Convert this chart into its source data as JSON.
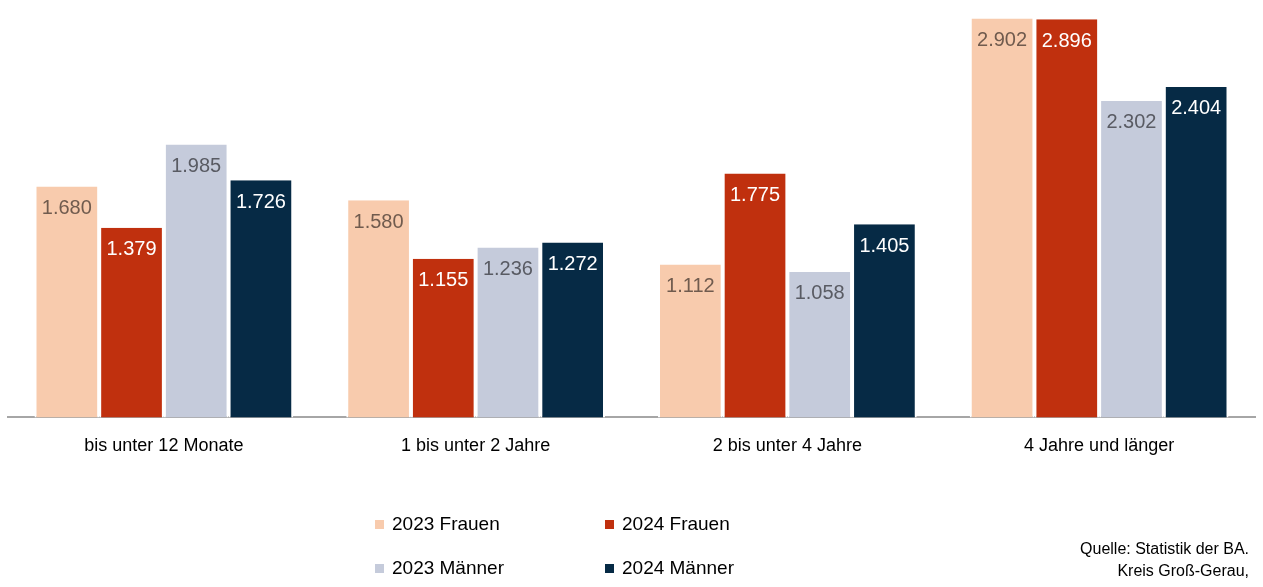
{
  "chart_data": {
    "type": "bar",
    "categories": [
      "bis unter 12 Monate",
      "1 bis unter 2 Jahre",
      "2 bis unter 4 Jahre",
      "4 Jahre und länger"
    ],
    "series": [
      {
        "name": "2023 Frauen",
        "color": "#f8cbad",
        "values": [
          1680,
          1580,
          1112,
          2902
        ],
        "value_labels": [
          "1.680",
          "1.580",
          "1.112",
          "2.902"
        ]
      },
      {
        "name": "2024 Frauen",
        "color": "#c0300e",
        "values": [
          1379,
          1155,
          1775,
          2896
        ],
        "value_labels": [
          "1.379",
          "1.155",
          "1.775",
          "2.896"
        ]
      },
      {
        "name": "2023 Männer",
        "color": "#c5cbdb",
        "values": [
          1985,
          1236,
          1058,
          2302
        ],
        "value_labels": [
          "1.985",
          "1.236",
          "1.058",
          "2.302"
        ]
      },
      {
        "name": "2024 Männer",
        "color": "#062a45",
        "values": [
          1726,
          1272,
          1405,
          2404
        ],
        "value_labels": [
          "1.726",
          "1.272",
          "1.405",
          "2.404"
        ]
      }
    ],
    "grid": false,
    "legend": "bottom",
    "annotations": [
      "Quelle: Statistik der BA.",
      "Kreis Groß-Gerau,"
    ]
  }
}
